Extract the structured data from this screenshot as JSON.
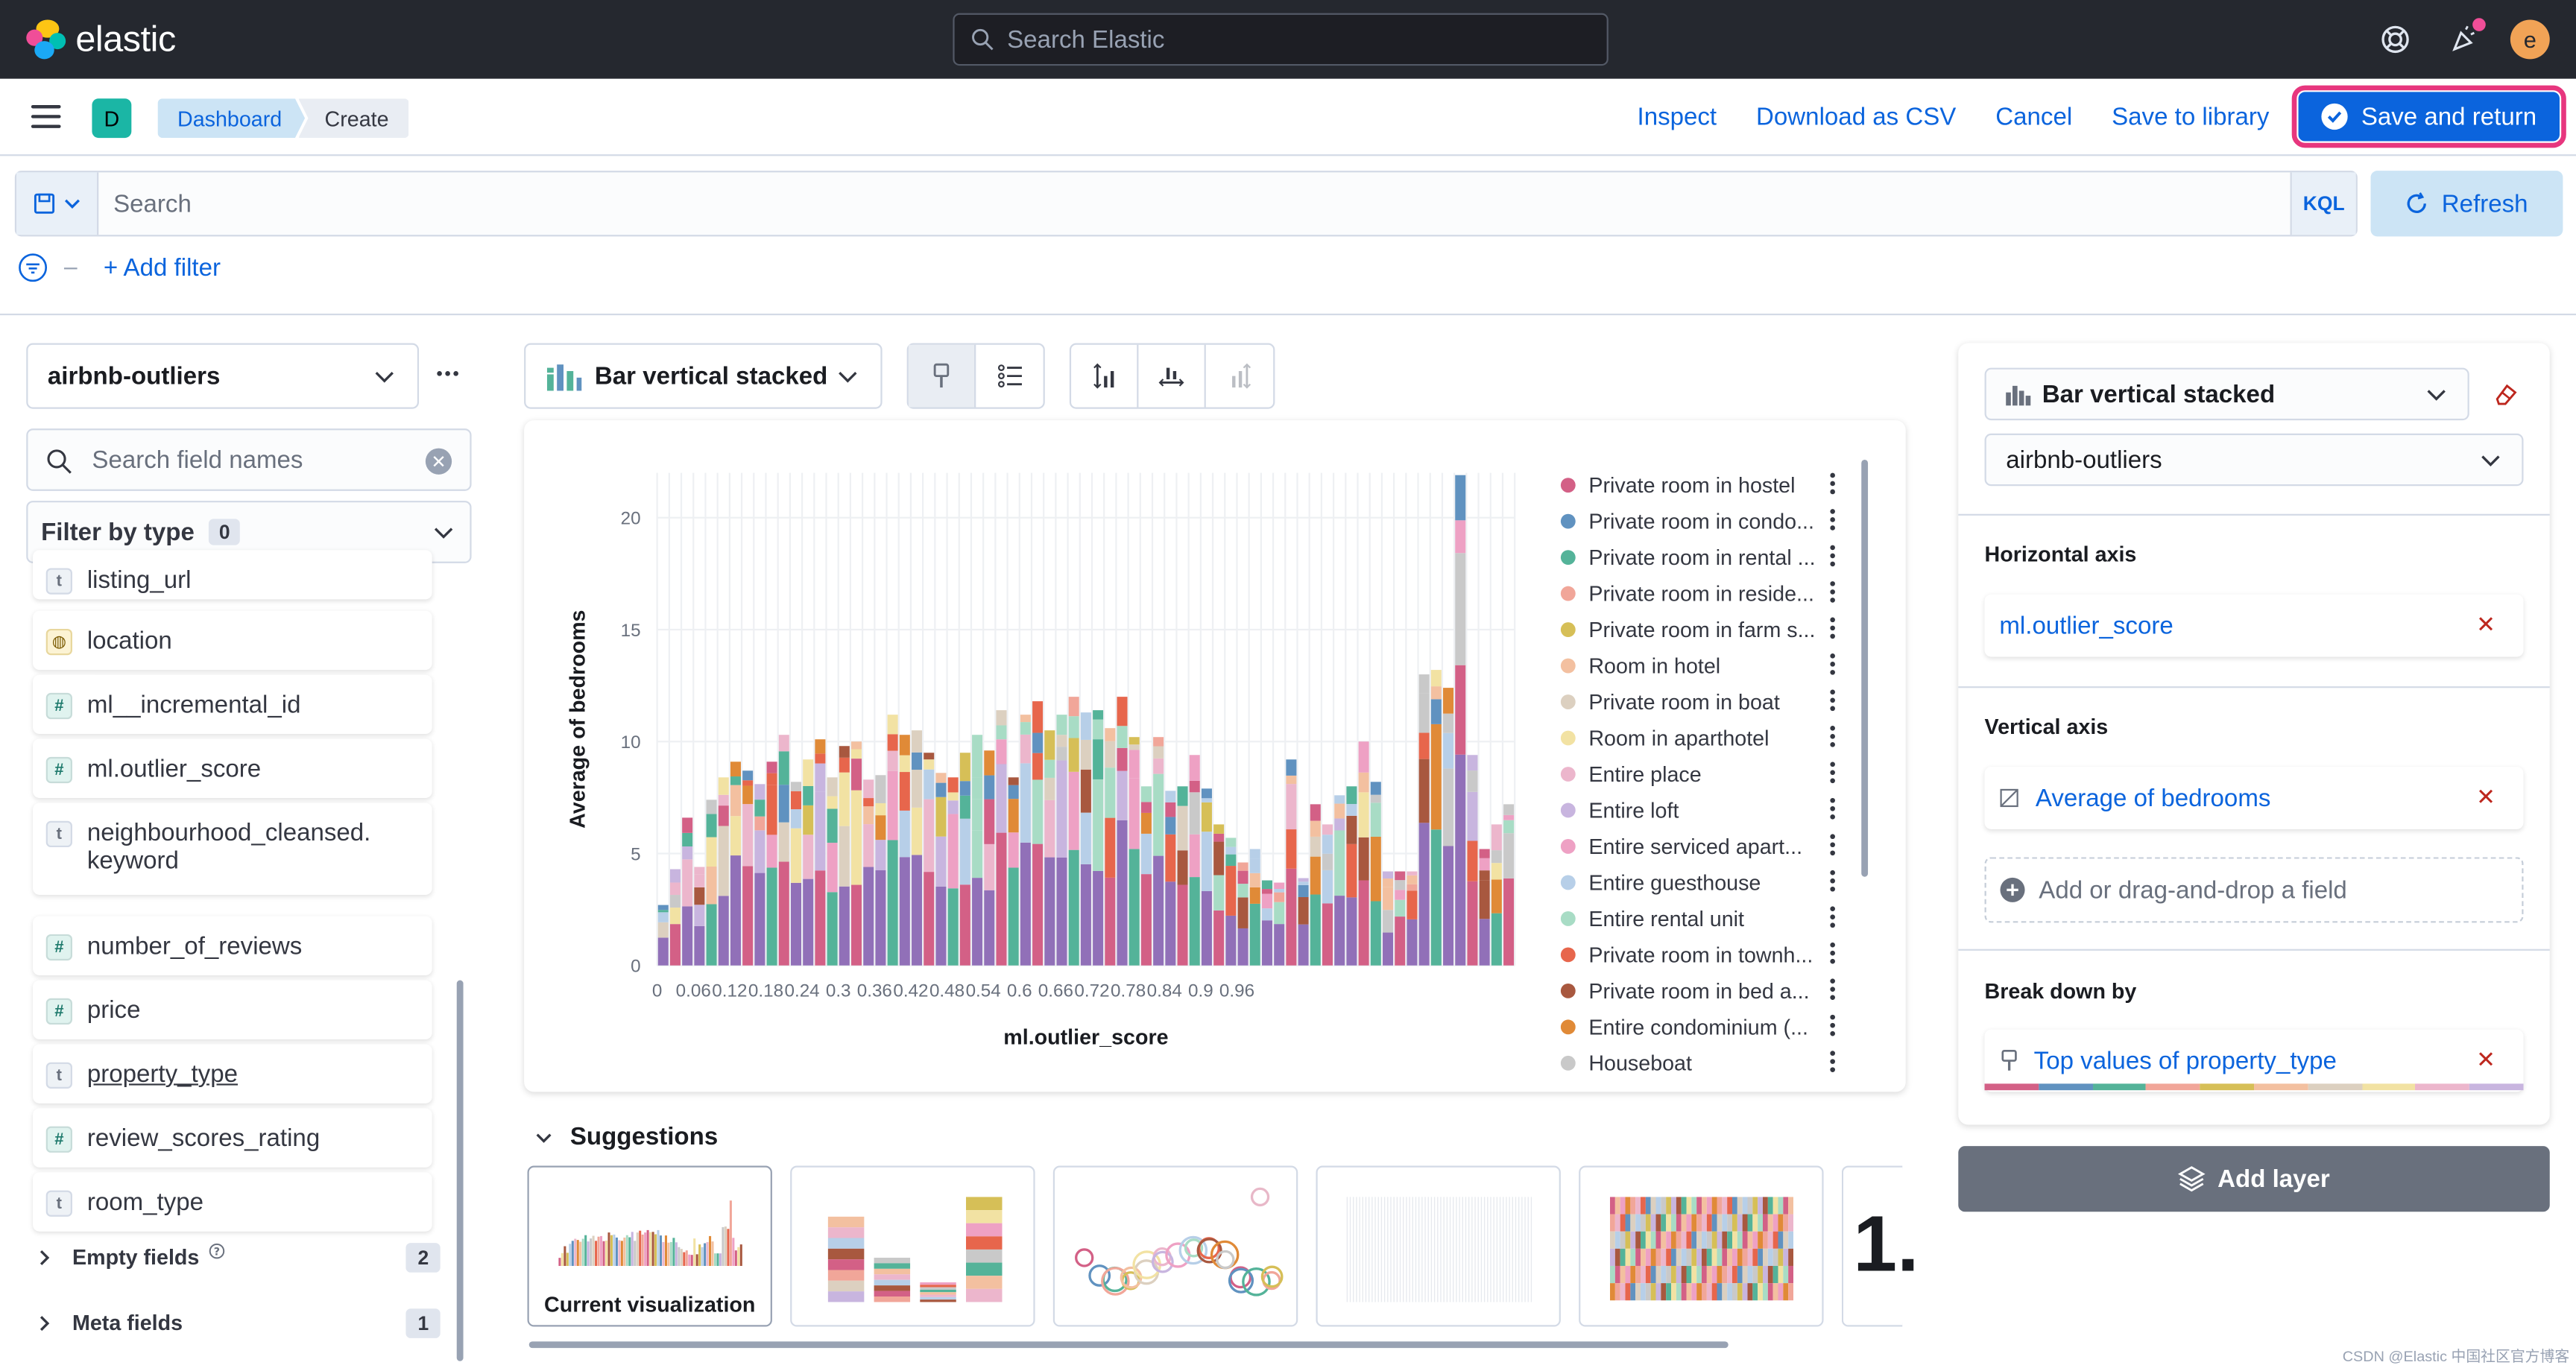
{
  "app": {
    "logo_text": "elastic",
    "search_placeholder": "Search Elastic",
    "avatar_letter": "e"
  },
  "appbar": {
    "space_letter": "D",
    "breadcrumbs": [
      "Dashboard",
      "Create"
    ],
    "actions": [
      "Inspect",
      "Download as CSV",
      "Cancel",
      "Save to library"
    ],
    "primary_action": "Save and return"
  },
  "query": {
    "placeholder": "Search",
    "language": "KQL",
    "refresh_label": "Refresh",
    "add_filter_label": "+ Add filter"
  },
  "left_panel": {
    "data_view": "airbnb-outliers",
    "field_search_placeholder": "Search field names",
    "filter_by_type_label": "Filter by type",
    "filter_by_type_count": "0",
    "fields": [
      {
        "name": "listing_url",
        "type": "t"
      },
      {
        "name": "location",
        "type": "geo"
      },
      {
        "name": "ml__incremental_id",
        "type": "#"
      },
      {
        "name": "ml.outlier_score",
        "type": "#"
      },
      {
        "name": "neighbourhood_cleansed.\nkeyword",
        "type": "t"
      },
      {
        "name": "number_of_reviews",
        "type": "#"
      },
      {
        "name": "price",
        "type": "#"
      },
      {
        "name": "property_type",
        "type": "t"
      },
      {
        "name": "review_scores_rating",
        "type": "#"
      },
      {
        "name": "room_type",
        "type": "t"
      }
    ],
    "empty_fields_label": "Empty fields",
    "empty_fields_count": "2",
    "meta_fields_label": "Meta fields",
    "meta_fields_count": "1"
  },
  "workspace": {
    "chart_type_label": "Bar vertical stacked",
    "suggestions_title": "Suggestions",
    "current_visualization_label": "Current visualization",
    "metric_preview_text": "1."
  },
  "chart_data": {
    "type": "bar",
    "stacked": true,
    "xlabel": "ml.outlier_score",
    "ylabel": "Average of bedrooms",
    "ylim": [
      0,
      22
    ],
    "y_ticks": [
      0,
      5,
      10,
      15,
      20
    ],
    "x_tick_labels": [
      "0",
      "0.06",
      "0.12",
      "0.18",
      "0.24",
      "0.3",
      "0.36",
      "0.42",
      "0.48",
      "0.54",
      "0.6",
      "0.66",
      "0.72",
      "0.78",
      "0.84",
      "0.9",
      "0.96"
    ],
    "x_min": 0,
    "x_step": 0.02,
    "grid": true,
    "legend_position": "right",
    "series": [
      {
        "name": "Private room in hostel",
        "color": "#d36086"
      },
      {
        "name": "Private room in condo...",
        "color": "#6092c0"
      },
      {
        "name": "Private room in rental ...",
        "color": "#54b399"
      },
      {
        "name": "Private room in reside...",
        "color": "#f1a699"
      },
      {
        "name": "Private room in farm s...",
        "color": "#d6bf57"
      },
      {
        "name": "Room in hotel",
        "color": "#f3c0a0"
      },
      {
        "name": "Private room in boat",
        "color": "#dcd0c0"
      },
      {
        "name": "Room in aparthotel",
        "color": "#f2e2a3"
      },
      {
        "name": "Entire place",
        "color": "#ecb6cc"
      },
      {
        "name": "Entire loft",
        "color": "#c8b5df"
      },
      {
        "name": "Entire serviced apart...",
        "color": "#eea1c4"
      },
      {
        "name": "Entire guesthouse",
        "color": "#b7cfe8"
      },
      {
        "name": "Entire rental unit",
        "color": "#a8dcc5"
      },
      {
        "name": "Private room in townh...",
        "color": "#e7664c"
      },
      {
        "name": "Private room in bed a...",
        "color": "#a8583f"
      },
      {
        "name": "Entire condominium (...",
        "color": "#e08a37"
      },
      {
        "name": "Houseboat",
        "color": "#c9c9c9"
      }
    ],
    "bar_totals": [
      2.7,
      4.3,
      6.6,
      4.4,
      7.4,
      8.4,
      9.1,
      8.7,
      8.1,
      9.1,
      10.3,
      8.2,
      9.2,
      10.1,
      8.4,
      9.8,
      10.0,
      8.3,
      8.5,
      11.2,
      10.3,
      10.5,
      9.5,
      8.6,
      8.4,
      9.5,
      10.3,
      9.6,
      11.4,
      8.4,
      11.2,
      11.8,
      10.5,
      11.2,
      12.0,
      11.3,
      11.4,
      10.6,
      12.0,
      10.2,
      8.0,
      10.2,
      7.8,
      8.0,
      9.4,
      7.9,
      6.3,
      5.7,
      4.6,
      5.2,
      3.8,
      3.7,
      9.2,
      3.9,
      7.2,
      6.3,
      7.6,
      8.0,
      10.0,
      8.2,
      4.2,
      4.2,
      4.2,
      13.0,
      13.2,
      12.4,
      21.9,
      9.4,
      5.2,
      6.3,
      7.2
    ]
  },
  "right_panel": {
    "chart_type_label": "Bar vertical stacked",
    "data_view": "airbnb-outliers",
    "horizontal_axis_label": "Horizontal axis",
    "horizontal_axis_value": "ml.outlier_score",
    "vertical_axis_label": "Vertical axis",
    "vertical_axis_value": "Average of bedrooms",
    "add_field_label": "Add or drag-and-drop a field",
    "breakdown_label": "Break down by",
    "breakdown_value": "Top values of property_type",
    "add_layer_label": "Add layer"
  },
  "watermark": "CSDN @Elastic 中国社区官方博客",
  "colors": {
    "primary": "#0b64dd",
    "topbar": "#25282f",
    "highlight": "#e7367e"
  }
}
